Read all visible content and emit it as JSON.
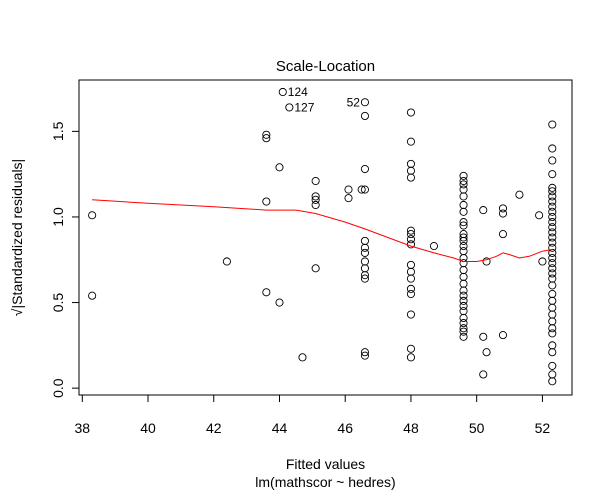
{
  "chart_data": {
    "type": "scatter",
    "title": "Scale-Location",
    "xlabel": "Fitted values",
    "subtitle": "lm(mathscor ~ hedres)",
    "ylabel": "√|Standardized residuals|",
    "xlim": [
      37.9,
      52.9
    ],
    "ylim": [
      -0.04,
      1.8
    ],
    "xticks": [
      "38",
      "40",
      "42",
      "44",
      "46",
      "48",
      "50",
      "52"
    ],
    "yticks": [
      "0.0",
      "0.5",
      "1.0",
      "1.5"
    ],
    "point_color": "#000000",
    "line_color": "#ff0000",
    "points": [
      [
        38.3,
        1.01
      ],
      [
        38.3,
        0.54
      ],
      [
        42.4,
        0.74
      ],
      [
        43.6,
        1.48
      ],
      [
        43.6,
        1.46
      ],
      [
        43.6,
        1.09
      ],
      [
        43.6,
        0.56
      ],
      [
        44.0,
        1.29
      ],
      [
        44.0,
        0.5
      ],
      [
        44.1,
        1.73
      ],
      [
        44.3,
        1.64
      ],
      [
        44.7,
        0.18
      ],
      [
        45.1,
        1.21
      ],
      [
        45.1,
        1.12
      ],
      [
        45.1,
        1.1
      ],
      [
        45.1,
        1.07
      ],
      [
        45.1,
        0.7
      ],
      [
        46.1,
        1.16
      ],
      [
        46.1,
        1.11
      ],
      [
        46.5,
        1.16
      ],
      [
        46.6,
        1.16
      ],
      [
        46.6,
        1.67
      ],
      [
        46.6,
        1.59
      ],
      [
        46.6,
        1.28
      ],
      [
        46.6,
        0.86
      ],
      [
        46.6,
        0.82
      ],
      [
        46.6,
        0.79
      ],
      [
        46.6,
        0.74
      ],
      [
        46.6,
        0.7
      ],
      [
        46.6,
        0.66
      ],
      [
        46.6,
        0.64
      ],
      [
        46.6,
        0.21
      ],
      [
        46.6,
        0.19
      ],
      [
        48.0,
        1.61
      ],
      [
        48.0,
        1.44
      ],
      [
        48.0,
        1.31
      ],
      [
        48.0,
        1.27
      ],
      [
        48.0,
        1.23
      ],
      [
        48.0,
        0.92
      ],
      [
        48.0,
        0.9
      ],
      [
        48.0,
        0.87
      ],
      [
        48.0,
        0.84
      ],
      [
        48.0,
        0.72
      ],
      [
        48.0,
        0.68
      ],
      [
        48.0,
        0.64
      ],
      [
        48.0,
        0.58
      ],
      [
        48.0,
        0.55
      ],
      [
        48.0,
        0.43
      ],
      [
        48.0,
        0.23
      ],
      [
        48.0,
        0.18
      ],
      [
        48.7,
        0.83
      ],
      [
        49.6,
        1.24
      ],
      [
        49.6,
        1.21
      ],
      [
        49.6,
        1.19
      ],
      [
        49.6,
        1.16
      ],
      [
        49.6,
        1.12
      ],
      [
        49.6,
        1.07
      ],
      [
        49.6,
        1.03
      ],
      [
        49.6,
        0.97
      ],
      [
        49.6,
        0.95
      ],
      [
        49.6,
        0.9
      ],
      [
        49.6,
        0.88
      ],
      [
        49.6,
        0.86
      ],
      [
        49.6,
        0.83
      ],
      [
        49.6,
        0.8
      ],
      [
        49.6,
        0.76
      ],
      [
        49.6,
        0.73
      ],
      [
        49.6,
        0.69
      ],
      [
        49.6,
        0.65
      ],
      [
        49.6,
        0.61
      ],
      [
        49.6,
        0.57
      ],
      [
        49.6,
        0.54
      ],
      [
        49.6,
        0.51
      ],
      [
        49.6,
        0.48
      ],
      [
        49.6,
        0.45
      ],
      [
        49.6,
        0.41
      ],
      [
        49.6,
        0.38
      ],
      [
        49.6,
        0.35
      ],
      [
        49.6,
        0.33
      ],
      [
        49.6,
        0.3
      ],
      [
        50.2,
        1.04
      ],
      [
        50.2,
        0.3
      ],
      [
        50.2,
        0.08
      ],
      [
        50.3,
        0.74
      ],
      [
        50.3,
        0.21
      ],
      [
        50.8,
        1.05
      ],
      [
        50.8,
        1.02
      ],
      [
        50.8,
        0.9
      ],
      [
        50.8,
        0.31
      ],
      [
        51.3,
        1.13
      ],
      [
        51.9,
        1.01
      ],
      [
        52.0,
        0.74
      ],
      [
        52.3,
        1.54
      ],
      [
        52.3,
        1.4
      ],
      [
        52.3,
        1.33
      ],
      [
        52.3,
        1.25
      ],
      [
        52.3,
        1.17
      ],
      [
        52.3,
        1.15
      ],
      [
        52.3,
        1.12
      ],
      [
        52.3,
        1.09
      ],
      [
        52.3,
        1.06
      ],
      [
        52.3,
        1.03
      ],
      [
        52.3,
        1.0
      ],
      [
        52.3,
        0.97
      ],
      [
        52.3,
        0.94
      ],
      [
        52.3,
        0.91
      ],
      [
        52.3,
        0.88
      ],
      [
        52.3,
        0.85
      ],
      [
        52.3,
        0.82
      ],
      [
        52.3,
        0.79
      ],
      [
        52.3,
        0.76
      ],
      [
        52.3,
        0.73
      ],
      [
        52.3,
        0.7
      ],
      [
        52.3,
        0.67
      ],
      [
        52.3,
        0.64
      ],
      [
        52.3,
        0.6
      ],
      [
        52.3,
        0.55
      ],
      [
        52.3,
        0.51
      ],
      [
        52.3,
        0.47
      ],
      [
        52.3,
        0.43
      ],
      [
        52.3,
        0.39
      ],
      [
        52.3,
        0.35
      ],
      [
        52.3,
        0.32
      ],
      [
        52.3,
        0.25
      ],
      [
        52.3,
        0.21
      ],
      [
        52.3,
        0.13
      ],
      [
        52.3,
        0.08
      ],
      [
        52.3,
        0.04
      ]
    ],
    "annotations": [
      {
        "text": "124",
        "x": 44.1,
        "y": 1.73,
        "side": "right"
      },
      {
        "text": "127",
        "x": 44.3,
        "y": 1.64,
        "side": "right"
      },
      {
        "text": "52",
        "x": 46.6,
        "y": 1.67,
        "side": "left"
      }
    ],
    "smooth_line": [
      [
        38.3,
        1.1
      ],
      [
        40.0,
        1.08
      ],
      [
        42.0,
        1.06
      ],
      [
        43.6,
        1.04
      ],
      [
        44.5,
        1.04
      ],
      [
        45.1,
        1.02
      ],
      [
        46.0,
        0.97
      ],
      [
        46.6,
        0.93
      ],
      [
        47.3,
        0.88
      ],
      [
        48.0,
        0.83
      ],
      [
        48.7,
        0.79
      ],
      [
        49.3,
        0.76
      ],
      [
        49.6,
        0.74
      ],
      [
        50.0,
        0.74
      ],
      [
        50.3,
        0.75
      ],
      [
        50.6,
        0.77
      ],
      [
        50.8,
        0.79
      ],
      [
        51.0,
        0.78
      ],
      [
        51.3,
        0.76
      ],
      [
        51.6,
        0.77
      ],
      [
        52.0,
        0.8
      ],
      [
        52.3,
        0.81
      ]
    ]
  }
}
